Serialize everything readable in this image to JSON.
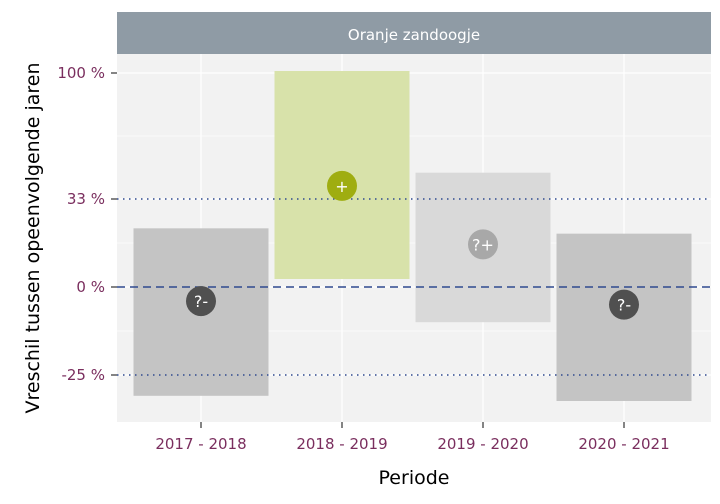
{
  "chart_data": {
    "type": "bar",
    "panel_title": "Oranje zandoogje",
    "xlabel": "Periode",
    "ylabel": "Vreschil tussen opeenvolgende jaren",
    "y_scale": "transformed",
    "y_ticks": [
      {
        "value": -25,
        "label": "-25 %"
      },
      {
        "value": 0,
        "label": "0 %"
      },
      {
        "value": 33,
        "label": "33 %"
      },
      {
        "value": 100,
        "label": "100 %"
      }
    ],
    "reference_lines": [
      {
        "value": 0,
        "style": "dashed",
        "color": "#2f4a8f"
      },
      {
        "value": 33,
        "style": "dotted",
        "color": "#2f4a8f"
      },
      {
        "value": -25,
        "style": "dotted",
        "color": "#2f4a8f"
      }
    ],
    "categories": [
      "2017 - 2018",
      "2018 - 2019",
      "2019 - 2020",
      "2020 - 2021"
    ],
    "intervals": [
      {
        "category": "2017 - 2018",
        "lower": -29,
        "estimate": -4,
        "upper": 22,
        "classification": "?-",
        "fill": "#c4c4c4",
        "marker_color": "#505050"
      },
      {
        "category": "2018 - 2019",
        "lower": 3,
        "estimate": 40,
        "upper": 102,
        "classification": "+",
        "fill": "#d8e2aa",
        "marker_color": "#9fad11"
      },
      {
        "category": "2019 - 2020",
        "lower": -10,
        "estimate": 16,
        "upper": 47,
        "classification": "?+",
        "fill": "#d9d9d9",
        "marker_color": "#a8a8a8"
      },
      {
        "category": "2020 - 2021",
        "lower": -30,
        "estimate": -5,
        "upper": 20,
        "classification": "?-",
        "fill": "#c4c4c4",
        "marker_color": "#505050"
      }
    ],
    "colors": {
      "strip_background": "#8f9ba5",
      "panel_background": "#f2f2f2",
      "grid": "#ffffff",
      "tick_label": "#7a2e5e"
    }
  }
}
